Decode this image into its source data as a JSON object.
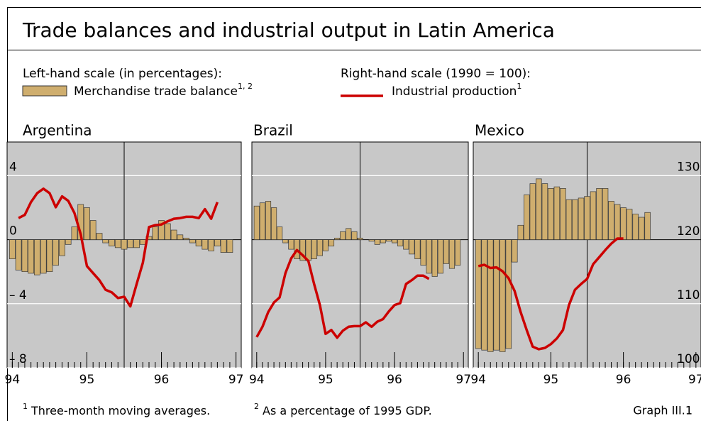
{
  "chart_data": {
    "type": "bar-line",
    "title": "Trade balances and industrial output in Latin America",
    "legend": {
      "left_heading": "Left-hand scale (in percentages):",
      "right_heading": "Right-hand scale (1990 = 100):"
    },
    "series": [
      {
        "name": "Merchandise trade balance",
        "note": "1, 2",
        "color": "#cfae6e",
        "axis": "y"
      },
      {
        "name": "Industrial production",
        "note": "1",
        "color": "#cc0000",
        "axis": "y2"
      }
    ],
    "x": [
      1994,
      1994.083,
      1994.167,
      1994.25,
      1994.333,
      1994.417,
      1994.5,
      1994.583,
      1994.667,
      1994.75,
      1994.833,
      1994.917,
      1995,
      1995.083,
      1995.167,
      1995.25,
      1995.333,
      1995.417,
      1995.5,
      1995.583,
      1995.667,
      1995.75,
      1995.833,
      1995.917,
      1996,
      1996.083,
      1996.167,
      1996.25,
      1996.333,
      1996.417,
      1996.5,
      1996.583,
      1996.667,
      1996.75,
      1996.833,
      1996.917
    ],
    "xlim": [
      1993.93,
      1997.07
    ],
    "xticks": [
      {
        "value": 1994,
        "label": "94"
      },
      {
        "value": 1995,
        "label": "95"
      },
      {
        "value": 1996,
        "label": "96"
      },
      {
        "value": 1997,
        "label": "97"
      }
    ],
    "ylim": [
      -8,
      6.1
    ],
    "yticks": [
      {
        "value": -8,
        "label": "– 8"
      },
      {
        "value": -4,
        "label": "– 4"
      },
      0,
      4
    ],
    "y2lim": [
      100,
      135.3
    ],
    "y2ticks": [
      100,
      110,
      120,
      130
    ],
    "grid": true,
    "panels": [
      {
        "name": "Argentina",
        "series": [
          {
            "values": [
              -1.2,
              -1.9,
              -2.0,
              -2.1,
              -2.2,
              -2.1,
              -2.0,
              -1.6,
              -1.0,
              -0.3,
              0.8,
              2.2,
              2.0,
              1.2,
              0.4,
              -0.2,
              -0.4,
              -0.5,
              -0.6,
              -0.5,
              -0.5,
              -0.3,
              0.2,
              0.8,
              1.2,
              1.0,
              0.6,
              0.3,
              0.1,
              -0.2,
              -0.4,
              -0.6,
              -0.7,
              -0.4,
              -0.8,
              -0.8
            ]
          },
          {
            "values": [
              null,
              123.4,
              123.9,
              125.9,
              127.3,
              128,
              127.3,
              125.1,
              126.8,
              126.1,
              124.2,
              120.9,
              115.9,
              114.8,
              113.7,
              112.2,
              111.8,
              110.9,
              111.1,
              109.6,
              113.1,
              116.4,
              122,
              122.3,
              122.4,
              122.9,
              123.3,
              123.4,
              123.6,
              123.6,
              123.4,
              124.8,
              123.3,
              125.9,
              null,
              null
            ]
          }
        ]
      },
      {
        "name": "Brazil",
        "series": [
          {
            "values": [
              2.1,
              2.3,
              2.4,
              2.0,
              0.8,
              -0.2,
              -0.6,
              -1.2,
              -1.3,
              -1.3,
              -1.2,
              -1.0,
              -0.7,
              -0.4,
              0.1,
              0.5,
              0.7,
              0.5,
              0.1,
              0.0,
              -0.1,
              -0.3,
              -0.2,
              -0.1,
              -0.2,
              -0.4,
              -0.6,
              -0.9,
              -1.2,
              -1.6,
              -2.1,
              -2.3,
              -2.1,
              -1.5,
              -1.8,
              -1.6
            ]
          },
          {
            "values": [
              104.8,
              106.4,
              108.7,
              110.2,
              111.0,
              114.8,
              117.1,
              118.4,
              117.6,
              116.7,
              113.1,
              109.8,
              105.3,
              105.9,
              104.7,
              105.8,
              106.4,
              106.5,
              106.5,
              107.1,
              106.4,
              107.2,
              107.6,
              108.8,
              109.8,
              110.1,
              113.1,
              113.7,
              114.4,
              114.4,
              113.9,
              null,
              null,
              null,
              null,
              null
            ]
          }
        ]
      },
      {
        "name": "Mexico",
        "series": [
          {
            "values": [
              -6.8,
              -6.9,
              -7.0,
              -6.9,
              -7.0,
              -6.8,
              -1.4,
              0.9,
              2.8,
              3.5,
              3.8,
              3.5,
              3.2,
              3.3,
              3.2,
              2.5,
              2.5,
              2.6,
              2.7,
              3.0,
              3.2,
              3.2,
              2.4,
              2.2,
              2.0,
              1.9,
              1.6,
              1.4,
              1.7,
              null,
              null,
              null,
              null,
              null,
              null,
              null
            ]
          },
          {
            "values": [
              115.9,
              116.1,
              115.6,
              115.7,
              115.1,
              114.0,
              112.0,
              108.7,
              105.9,
              103.3,
              102.9,
              103.1,
              103.7,
              104.6,
              105.9,
              109.8,
              112.2,
              113.1,
              113.9,
              116.2,
              117.3,
              118.4,
              119.4,
              120.2,
              120.2,
              null,
              null,
              null,
              null,
              null,
              null,
              null,
              null,
              null,
              null,
              null
            ]
          }
        ]
      }
    ],
    "footnotes": [
      {
        "mark": "1",
        "text": "Three-month moving averages."
      },
      {
        "mark": "2",
        "text": "As a percentage of 1995 GDP."
      }
    ],
    "source_label": "Graph III.1"
  }
}
